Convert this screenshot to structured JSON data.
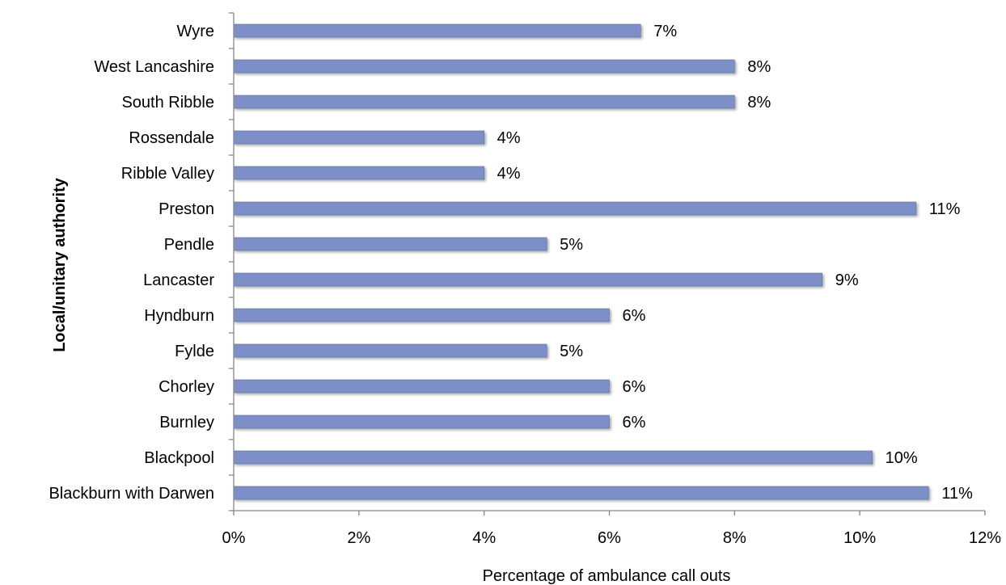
{
  "chart_data": {
    "type": "bar",
    "orientation": "horizontal",
    "categories": [
      "Wyre",
      "West Lancashire",
      "South Ribble",
      "Rossendale",
      "Ribble Valley",
      "Preston",
      "Pendle",
      "Lancaster",
      "Hyndburn",
      "Fylde",
      "Chorley",
      "Burnley",
      "Blackpool",
      "Blackburn with Darwen"
    ],
    "values": [
      6.5,
      8.0,
      8.0,
      4.0,
      4.0,
      10.9,
      5.0,
      9.4,
      6.0,
      5.0,
      6.0,
      6.0,
      10.2,
      11.1
    ],
    "data_labels": [
      "7%",
      "8%",
      "8%",
      "4%",
      "4%",
      "11%",
      "5%",
      "9%",
      "6%",
      "5%",
      "6%",
      "6%",
      "10%",
      "11%"
    ],
    "title": "",
    "xlabel": "Percentage of ambulance call outs",
    "ylabel": "Local/unitary authority",
    "xlim": [
      0,
      12
    ],
    "x_ticks": [
      0,
      2,
      4,
      6,
      8,
      10,
      12
    ],
    "x_tick_labels": [
      "0%",
      "2%",
      "4%",
      "6%",
      "8%",
      "10%",
      "12%"
    ],
    "grid": false,
    "legend": "none",
    "bar_color": "#7b8fc6",
    "bar_edge_color": "#5d6ea8"
  }
}
